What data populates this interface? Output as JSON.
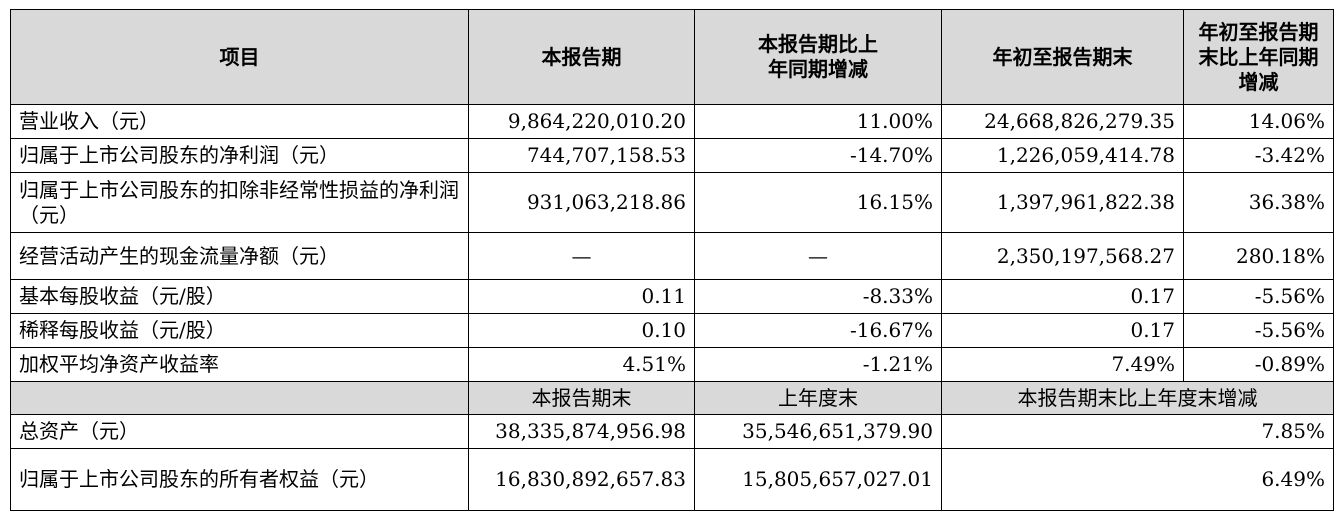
{
  "header": {
    "item": "项目",
    "current_period": "本报告期",
    "current_yoy": "本报告期比上年同期增减",
    "ytd": "年初至报告期末",
    "ytd_yoy": "年初至报告期末比上年同期增减"
  },
  "rows": [
    {
      "label": "营业收入（元）",
      "cur": "9,864,220,010.20",
      "cur_yoy": "11.00%",
      "ytd": "24,668,826,279.35",
      "ytd_yoy": "14.06%"
    },
    {
      "label": "归属于上市公司股东的净利润（元）",
      "cur": "744,707,158.53",
      "cur_yoy": "-14.70%",
      "ytd": "1,226,059,414.78",
      "ytd_yoy": "-3.42%"
    },
    {
      "label": "归属于上市公司股东的扣除非经常性损益的净利润（元）",
      "cur": "931,063,218.86",
      "cur_yoy": "16.15%",
      "ytd": "1,397,961,822.38",
      "ytd_yoy": "36.38%"
    },
    {
      "label": "经营活动产生的现金流量净额（元）",
      "cur": "—",
      "cur_yoy": "—",
      "ytd": "2,350,197,568.27",
      "ytd_yoy": "280.18%"
    },
    {
      "label": "基本每股收益（元/股）",
      "cur": "0.11",
      "cur_yoy": "-8.33%",
      "ytd": "0.17",
      "ytd_yoy": "-5.56%"
    },
    {
      "label": "稀释每股收益（元/股）",
      "cur": "0.10",
      "cur_yoy": "-16.67%",
      "ytd": "0.17",
      "ytd_yoy": "-5.56%"
    },
    {
      "label": "加权平均净资产收益率",
      "cur": "4.51%",
      "cur_yoy": "-1.21%",
      "ytd": "7.49%",
      "ytd_yoy": "-0.89%"
    }
  ],
  "subheader": {
    "period_end": "本报告期末",
    "last_year_end": "上年度末",
    "change": "本报告期末比上年度末增减"
  },
  "balance_rows": [
    {
      "label": "总资产（元）",
      "period_end": "38,335,874,956.98",
      "last_year_end": "35,546,651,379.90",
      "change": "7.85%"
    },
    {
      "label": "归属于上市公司股东的所有者权益（元）",
      "period_end": "16,830,892,657.83",
      "last_year_end": "15,805,657,027.01",
      "change": "6.49%"
    }
  ]
}
